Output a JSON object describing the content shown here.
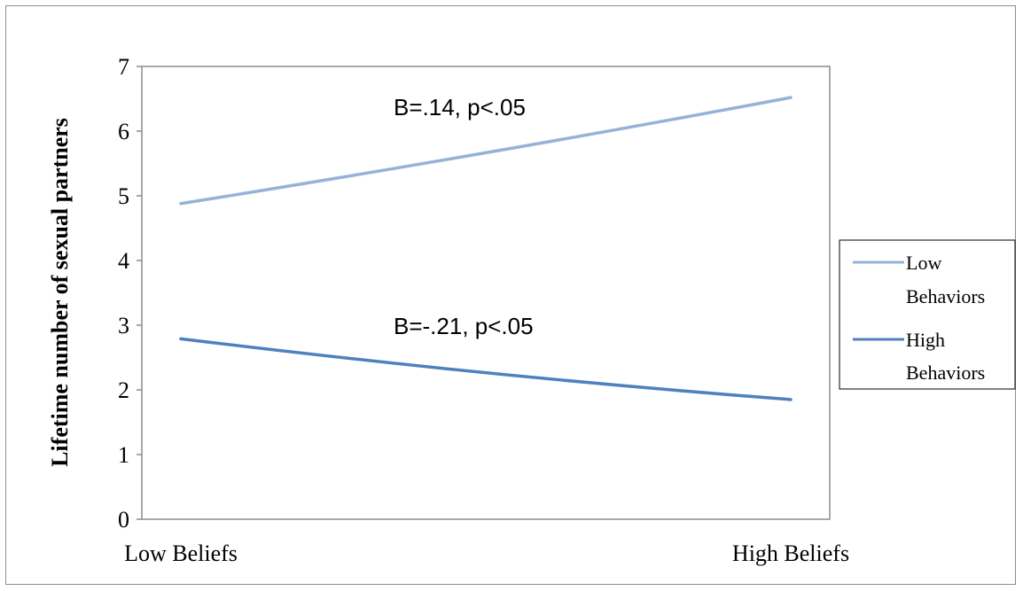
{
  "chart_data": {
    "type": "line",
    "categories": [
      "Low Beliefs",
      "High Beliefs"
    ],
    "series": [
      {
        "name": "Low Behaviors",
        "values": [
          4.88,
          6.52
        ],
        "color": "#95b3d7"
      },
      {
        "name": "High Behaviors",
        "values": [
          2.79,
          1.85
        ],
        "color": "#4f81bd"
      }
    ],
    "ylabel": "Lifetime number of sexual partners",
    "xlabel": "",
    "ylim": [
      0,
      7
    ],
    "yticks": [
      "0",
      "1",
      "2",
      "3",
      "4",
      "5",
      "6",
      "7"
    ],
    "grid": false,
    "legend": {
      "placement": "right",
      "entries": [
        {
          "lines": [
            "Low",
            "Behaviors"
          ],
          "color": "#95b3d7"
        },
        {
          "lines": [
            "High",
            "Behaviors"
          ],
          "color": "#4f81bd"
        }
      ]
    },
    "annotations": [
      {
        "text": "B=.14, p<.05",
        "series": "Low Behaviors"
      },
      {
        "text": "B=-.21, p<.05",
        "series": "High Behaviors"
      }
    ]
  }
}
